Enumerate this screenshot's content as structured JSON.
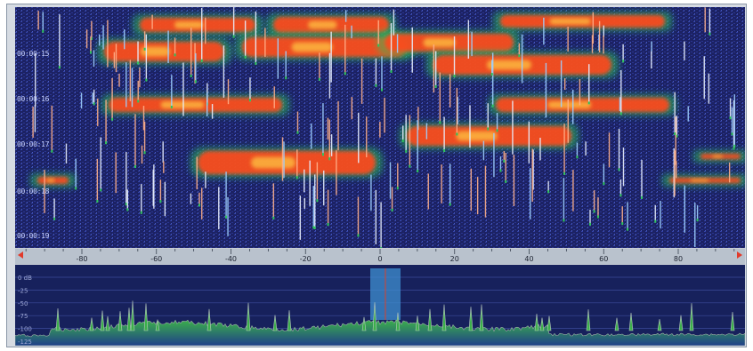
{
  "waterfall": {
    "time_labels": [
      "00:00:15",
      "00:00:16",
      "00:00:17",
      "00:00:18",
      "00:00:19"
    ],
    "colors": {
      "background": "#1a1f5c",
      "noise_blue": "#2f3d9c",
      "carrier_core": "#ff4a1e",
      "carrier_hot": "#ffcc44",
      "carrier_edge": "#2ec45c"
    }
  },
  "scale": {
    "ticks": [
      "-80",
      "-60",
      "-40",
      "-20",
      "0",
      "20",
      "40",
      "60",
      "80"
    ],
    "tick_values": [
      -80,
      -60,
      -40,
      -20,
      0,
      20,
      40,
      60,
      80
    ],
    "range": [
      -96,
      96
    ],
    "arrow_color": "#e23a2a"
  },
  "spectrum": {
    "db_labels": [
      "0 dB",
      "-25",
      "-50",
      "-75",
      "-100",
      "-125"
    ],
    "db_values": [
      0,
      -25,
      -50,
      -75,
      -100,
      -125
    ],
    "filter_color": "#3f8fd0",
    "trace_fill": "#2e8f3c",
    "background": "#17215c"
  }
}
